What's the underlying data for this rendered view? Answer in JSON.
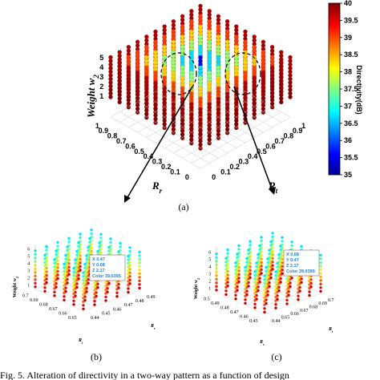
{
  "colors": {
    "scale": [
      "#00008f",
      "#0000ff",
      "#0080ff",
      "#00ffff",
      "#80ff80",
      "#ffff00",
      "#ff8000",
      "#ff0000",
      "#800000"
    ],
    "tooltip_text": "#1a7fd6",
    "arrow": "#000000"
  },
  "caption": {
    "a": "(a)",
    "b": "(b)",
    "c": "(c)",
    "figure_text": "Fig. 5.   Alteration of directivity in a two-way pattern as a function of design"
  },
  "chart_data": [
    {
      "id": "a",
      "type": "scatter3d",
      "xlabel": "R_r",
      "ylabel": "R_t",
      "zlabel": "Weight w_2",
      "x_ticks": [
        "1",
        "0.9",
        "0.8",
        "0.7",
        "0.6",
        "0.5",
        "0.4",
        "0.3",
        "0.2",
        "0.1",
        "0"
      ],
      "y_ticks": [
        "0",
        "0.1",
        "0.2",
        "0.3",
        "0.4",
        "0.5",
        "0.6",
        "0.7",
        "0.8",
        "0.9",
        "1"
      ],
      "z_ticks": [
        "1",
        "2",
        "3",
        "4",
        "5"
      ],
      "colorbar": {
        "label": "Directivity(dB)",
        "ticks": [
          "40",
          "39.5",
          "39",
          "38.5",
          "38",
          "37.5",
          "37",
          "36.5",
          "36",
          "35.5",
          "35"
        ],
        "range": [
          35,
          40
        ]
      }
    },
    {
      "id": "b",
      "type": "scatter3d",
      "xlabel": "R_t",
      "ylabel": "R_r",
      "zlabel": "Weight w_2",
      "x_ticks": [
        "0.7",
        "0.69",
        "0.68",
        "0.67",
        "0.66",
        "0.65"
      ],
      "y_ticks": [
        "0.44",
        "0.45",
        "0.46",
        "0.47",
        "0.48",
        "0.49"
      ],
      "z_ticks": [
        "1",
        "2",
        "3",
        "4",
        "5",
        "6"
      ],
      "datatip": {
        "x": "X 0.47",
        "y": "Y 0.68",
        "z": "Z 2.17",
        "color": "Color 39.0395"
      }
    },
    {
      "id": "c",
      "type": "scatter3d",
      "xlabel": "R_r",
      "ylabel": "R_t",
      "zlabel": "Weight w_2",
      "x_ticks": [
        "0.5",
        "0.49",
        "0.48",
        "0.47",
        "0.46",
        "0.45"
      ],
      "y_ticks": [
        "0.44",
        "0.65",
        "0.66",
        "0.67",
        "0.68",
        "0.69",
        "0.7"
      ],
      "z_ticks": [
        "1",
        "2",
        "3",
        "4",
        "5",
        "6"
      ],
      "datatip": {
        "x": "X 0.68",
        "y": "Y 0.47",
        "z": "Z 2.17",
        "color": "Color 39.0395"
      }
    }
  ]
}
